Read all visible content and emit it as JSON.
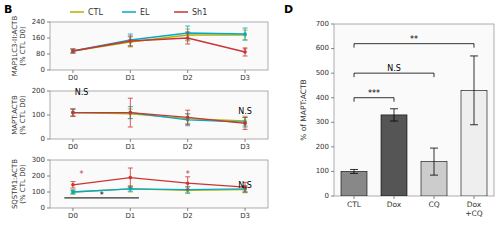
{
  "chart_data": [
    {
      "type": "line",
      "title": "B",
      "categories": [
        "D0",
        "D1",
        "D2",
        "D3"
      ],
      "xlim": [
        -0.4,
        3.4
      ],
      "ylabel": "MAP1LC3-II:ACTB\n(% CTL D0)",
      "ylim": [
        0,
        240
      ],
      "yticks": [
        0,
        80,
        160,
        240
      ],
      "legend": "top",
      "marker": "circle",
      "series": [
        {
          "name": "CTL",
          "color": "#b5b000",
          "values": [
            95,
            140,
            175,
            175
          ],
          "errors": [
            10,
            25,
            30,
            25
          ]
        },
        {
          "name": "EL",
          "color": "#00aacc",
          "values": [
            95,
            150,
            185,
            180
          ],
          "errors": [
            10,
            30,
            35,
            30
          ]
        },
        {
          "name": "Sh1",
          "color": "#cc3333",
          "values": [
            95,
            145,
            160,
            90
          ],
          "errors": [
            10,
            25,
            30,
            20
          ]
        }
      ],
      "annotations": [
        {
          "x": 3,
          "y": 82,
          "text": "*",
          "color": "#cc3333"
        }
      ]
    },
    {
      "type": "line",
      "categories": [
        "D0",
        "D1",
        "D2",
        "D3"
      ],
      "xlim": [
        -0.4,
        3.4
      ],
      "ylabel": "MAPT:ACTB\n(% CTL D0)",
      "ylim": [
        0,
        200
      ],
      "yticks": [
        0,
        100,
        200
      ],
      "marker": "circle",
      "series": [
        {
          "color": "#b5b000",
          "values": [
            110,
            105,
            85,
            75
          ],
          "errors": [
            15,
            20,
            20,
            20
          ]
        },
        {
          "color": "#00aacc",
          "values": [
            110,
            110,
            80,
            70
          ],
          "errors": [
            15,
            25,
            25,
            20
          ]
        },
        {
          "color": "#cc3333",
          "values": [
            110,
            110,
            90,
            65
          ],
          "errors": [
            15,
            60,
            30,
            25
          ]
        }
      ],
      "annotations": [
        {
          "x": 0.15,
          "y": 185,
          "text": "N.S",
          "color": "black"
        },
        {
          "x": 3.0,
          "y": 105,
          "text": "N.S",
          "color": "black"
        }
      ]
    },
    {
      "type": "line",
      "categories": [
        "D0",
        "D1",
        "D2",
        "D3"
      ],
      "xlim": [
        -0.4,
        3.4
      ],
      "ylabel": "SQSTM1:ACTB\n(% CTL D0)",
      "ylim": [
        0,
        300
      ],
      "yticks": [
        0,
        100,
        200,
        300
      ],
      "marker": "circle",
      "series": [
        {
          "color": "#b5b000",
          "values": [
            100,
            120,
            110,
            115
          ],
          "errors": [
            15,
            20,
            20,
            20
          ]
        },
        {
          "color": "#00aacc",
          "values": [
            100,
            120,
            115,
            120
          ],
          "errors": [
            10,
            15,
            20,
            20
          ]
        },
        {
          "color": "#cc3333",
          "values": [
            145,
            190,
            155,
            130
          ],
          "errors": [
            20,
            60,
            40,
            30
          ]
        }
      ],
      "annotations": [
        {
          "x": 0.5,
          "y": 60,
          "text": "*",
          "color": "black"
        },
        {
          "x": 0.15,
          "y": 192,
          "text": "*",
          "color": "#cc3333"
        },
        {
          "x": 2.0,
          "y": 192,
          "text": "*",
          "color": "#cc3333"
        },
        {
          "x": 3.0,
          "y": 125,
          "text": "N.S",
          "color": "black"
        }
      ],
      "hlines": [
        {
          "x": [
            -0.15,
            1.15
          ],
          "y": 63
        }
      ]
    },
    {
      "type": "bar",
      "title": "D",
      "categories": [
        "CTL",
        "Dox",
        "CQ",
        "Dox\n+CQ"
      ],
      "values": [
        100,
        330,
        140,
        430
      ],
      "errors": [
        8,
        25,
        55,
        140
      ],
      "colors": [
        "#888888",
        "#555555",
        "#cccccc",
        "#eeeeee"
      ],
      "ylabel": "% of MAPT:ACTB",
      "ylim": [
        0,
        700
      ],
      "yticks": [
        0,
        100,
        200,
        300,
        400,
        500,
        600,
        700
      ],
      "brackets": [
        {
          "x1": 0,
          "x2": 1,
          "y": 400,
          "text": "***"
        },
        {
          "x1": 0,
          "x2": 2,
          "y": 500,
          "text": "N.S"
        },
        {
          "x1": 0,
          "x2": 3,
          "y": 620,
          "text": "**"
        }
      ]
    }
  ]
}
